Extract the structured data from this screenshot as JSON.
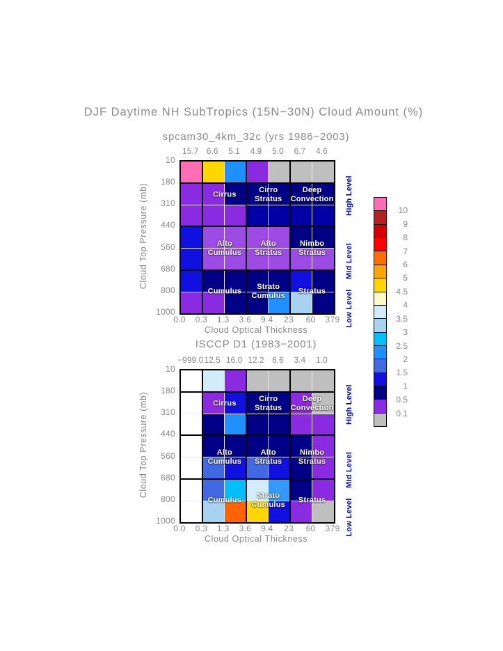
{
  "title": "DJF Daytime NH SubTropics (15N−30N) Cloud Amount (%)",
  "level_labels": [
    "High Level",
    "Mid Level",
    "Low Level"
  ],
  "palette": {
    "pink": "#FF6EB4",
    "gold": "#FFD700",
    "dodger": "#1E90FF",
    "gray": "#BFBFBF",
    "purple": "#8A2BE2",
    "lpurple": "#9C4BE4",
    "navy": "#000087",
    "mednavy": "#0000A6",
    "blue": "#1010E0",
    "royal": "#4169E1",
    "deepsky": "#00BFFF",
    "skybright": "#3399FB",
    "lightblue": "#A8D3F0",
    "paleblue": "#D2ECFA",
    "orangered": "#FF6400",
    "firebrick": "#B22222",
    "red3": "#D40000",
    "red": "#FF0000",
    "orange": "#FFA500",
    "paleyellow": "#FFF9C8",
    "white": "#FFFFFF"
  },
  "chart_data": [
    {
      "type": "heatmap",
      "title": "spcam30_4km_32c (yrs 1986−2003)",
      "column_totals": [
        "15.7",
        "6.6",
        "5.1",
        "4.9",
        "5.0",
        "6.7",
        "4.6"
      ],
      "x_ticks": [
        "0.0",
        "0.3",
        "1.3",
        "3.6",
        "9.4",
        "23",
        "60",
        "379"
      ],
      "y_ticks": [
        "10",
        "180",
        "310",
        "440",
        "560",
        "680",
        "800",
        "1000"
      ],
      "x_label": "Cloud Optical Thickness",
      "y_label": "Cloud Top Pressure (mb)",
      "cells": [
        [
          "pink",
          "gold",
          "dodger",
          "purple",
          "gray",
          "gray",
          "gray"
        ],
        [
          "purple",
          "purple",
          "navy",
          "navy",
          "navy",
          "navy",
          "navy"
        ],
        [
          "purple",
          "purple",
          "purple",
          "mednavy",
          "mednavy",
          "mednavy",
          "mednavy"
        ],
        [
          "blue",
          "lpurple",
          "lpurple",
          "lpurple",
          "lpurple",
          "navy",
          "navy"
        ],
        [
          "blue",
          "lpurple",
          "lpurple",
          "lpurple",
          "lpurple",
          "lpurple",
          "lpurple"
        ],
        [
          "blue",
          "navy",
          "navy",
          "navy",
          "navy",
          "blue",
          "navy"
        ],
        [
          "purple",
          "purple",
          "navy",
          "navy",
          "dodger",
          "lightblue",
          "navy"
        ]
      ],
      "cell_labels": [
        {
          "lines": [
            "Cirrus"
          ],
          "col_group": 0,
          "row_anchor": "high"
        },
        {
          "lines": [
            "Cirro",
            "Stratus"
          ],
          "col_group": 1,
          "row_anchor": "high"
        },
        {
          "lines": [
            "Deep",
            "Convection"
          ],
          "col_group": 2,
          "row_anchor": "high"
        },
        {
          "lines": [
            "Alto",
            "Cumulus"
          ],
          "col_group": 0,
          "row_anchor": "mid"
        },
        {
          "lines": [
            "Alto",
            "Stratus"
          ],
          "col_group": 1,
          "row_anchor": "mid"
        },
        {
          "lines": [
            "Nimbo",
            "Stratus"
          ],
          "col_group": 2,
          "row_anchor": "mid"
        },
        {
          "lines": [
            "Cumulus"
          ],
          "col_group": 0,
          "row_anchor": "low"
        },
        {
          "lines": [
            "Strato",
            "Cumulus"
          ],
          "col_group": 1,
          "row_anchor": "low"
        },
        {
          "lines": [
            "Stratus"
          ],
          "col_group": 2,
          "row_anchor": "low"
        }
      ]
    },
    {
      "type": "heatmap",
      "title": "ISCCP D1 (1983−2001)",
      "column_totals": [
        "−999.0",
        "12.5",
        "16.0",
        "12.2",
        "6.6",
        "3.4",
        "1.0"
      ],
      "x_ticks": [
        "0.0",
        "0.3",
        "1.3",
        "3.6",
        "9.4",
        "23",
        "60",
        "379"
      ],
      "y_ticks": [
        "10",
        "180",
        "310",
        "440",
        "560",
        "680",
        "800",
        "1000"
      ],
      "x_label": "Cloud Optical Thickness",
      "y_label": "Cloud Top Pressure (mb)",
      "cells": [
        [
          "white",
          "paleblue",
          "purple",
          "gray",
          "gray",
          "gray",
          "gray"
        ],
        [
          "white",
          "purple",
          "blue",
          "navy",
          "navy",
          "purple",
          "gray"
        ],
        [
          "white",
          "navy",
          "dodger",
          "navy",
          "navy",
          "purple",
          "purple"
        ],
        [
          "white",
          "navy",
          "navy",
          "navy",
          "navy",
          "navy",
          "purple"
        ],
        [
          "white",
          "royal",
          "blue",
          "royal",
          "blue",
          "navy",
          "purple"
        ],
        [
          "white",
          "royal",
          "deepsky",
          "paleblue",
          "skybright",
          "navy",
          "purple"
        ],
        [
          "white",
          "lightblue",
          "orangered",
          "gold",
          "blue",
          "purple",
          "gray"
        ]
      ],
      "cell_labels": [
        {
          "lines": [
            "Cirrus"
          ],
          "col_group": 0,
          "row_anchor": "high"
        },
        {
          "lines": [
            "Cirro",
            "Stratus"
          ],
          "col_group": 1,
          "row_anchor": "high"
        },
        {
          "lines": [
            "Deep",
            "Convection"
          ],
          "col_group": 2,
          "row_anchor": "high"
        },
        {
          "lines": [
            "Alto",
            "Cumulus"
          ],
          "col_group": 0,
          "row_anchor": "mid"
        },
        {
          "lines": [
            "Alto",
            "Stratus"
          ],
          "col_group": 1,
          "row_anchor": "mid"
        },
        {
          "lines": [
            "Nimbo",
            "Stratus"
          ],
          "col_group": 2,
          "row_anchor": "mid"
        },
        {
          "lines": [
            "Cumulus"
          ],
          "col_group": 0,
          "row_anchor": "low"
        },
        {
          "lines": [
            "Strato",
            "Cumulus"
          ],
          "col_group": 1,
          "row_anchor": "low"
        },
        {
          "lines": [
            "Stratus"
          ],
          "col_group": 2,
          "row_anchor": "low"
        }
      ]
    }
  ],
  "colorbar": {
    "segments": [
      {
        "color": "#FF6EB4",
        "label": "10"
      },
      {
        "color": "#B22222",
        "label": "9"
      },
      {
        "color": "#D40000",
        "label": "8"
      },
      {
        "color": "#FF0000",
        "label": "7"
      },
      {
        "color": "#FF6E00",
        "label": "6"
      },
      {
        "color": "#FFA500",
        "label": "5"
      },
      {
        "color": "#FFD700",
        "label": "4.5"
      },
      {
        "color": "#FFF9C8",
        "label": "4"
      },
      {
        "color": "#D2ECFA",
        "label": "3.5"
      },
      {
        "color": "#A8D3F0",
        "label": "3"
      },
      {
        "color": "#00BFFF",
        "label": "2.5"
      },
      {
        "color": "#1E90FF",
        "label": "2"
      },
      {
        "color": "#4169E1",
        "label": "1.5"
      },
      {
        "color": "#1010E0",
        "label": "1"
      },
      {
        "color": "#000087",
        "label": "0.5"
      },
      {
        "color": "#8A2BE2",
        "label": "0.1"
      },
      {
        "color": "#BFBFBF",
        "label": ""
      }
    ]
  }
}
